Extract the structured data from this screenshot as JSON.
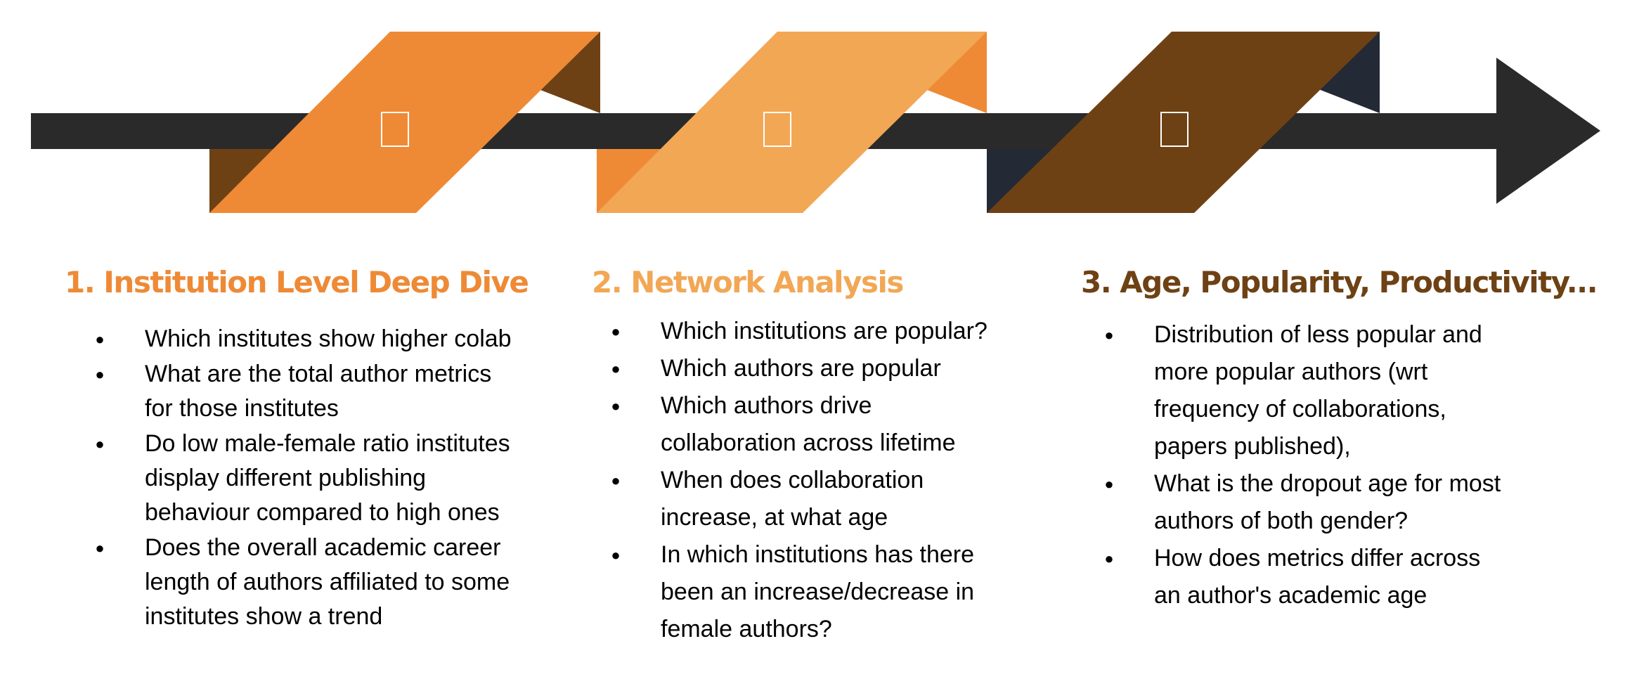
{
  "colors": {
    "arrow": "#2a2a2a",
    "stage1": "#ee8a36",
    "stage1_shadow": "#6e4114",
    "stage2": "#f2a755",
    "stage2_shadow": "#ee8a36",
    "stage3": "#6e4114",
    "stage3_shadow": "#232a36",
    "icon_stroke": "#ffffff"
  },
  "stages": [
    {
      "icon": "square-placeholder-icon"
    },
    {
      "icon": "square-placeholder-icon"
    },
    {
      "icon": "square-placeholder-icon"
    }
  ],
  "sections": [
    {
      "title": "1. Institution Level Deep Dive",
      "color": "#ee8a36",
      "bullets": [
        {
          "lines": [
            "Which institutes show higher colab"
          ]
        },
        {
          "lines": [
            "What are the total author metrics",
            "for those institutes"
          ]
        },
        {
          "lines": [
            "Do low male-female ratio institutes",
            "display different publishing",
            "behaviour compared to high ones"
          ]
        },
        {
          "lines": [
            "Does the overall academic career",
            "length of authors affiliated to some",
            "institutes show a trend"
          ]
        }
      ]
    },
    {
      "title": "2. Network Analysis",
      "color": "#f2a755",
      "bullets": [
        {
          "lines": [
            "Which institutions are popular?"
          ]
        },
        {
          "lines": [
            "Which authors are popular"
          ]
        },
        {
          "lines": [
            "Which authors drive",
            "collaboration across lifetime"
          ]
        },
        {
          "lines": [
            "When does collaboration",
            "increase, at what age"
          ]
        },
        {
          "lines": [
            "In which institutions has there",
            "been an increase/decrease in",
            "female authors?"
          ]
        }
      ]
    },
    {
      "title": "3. Age, Popularity, Productivity...",
      "color": "#6e4114",
      "bullets": [
        {
          "lines": [
            "Distribution of less popular and",
            "more popular authors (wrt",
            "frequency of collaborations,",
            "papers published),"
          ]
        },
        {
          "lines": [
            "What is the dropout age for most",
            "authors of both gender?"
          ]
        },
        {
          "lines": [
            "How does metrics differ across",
            "an author's academic age"
          ]
        }
      ]
    }
  ]
}
